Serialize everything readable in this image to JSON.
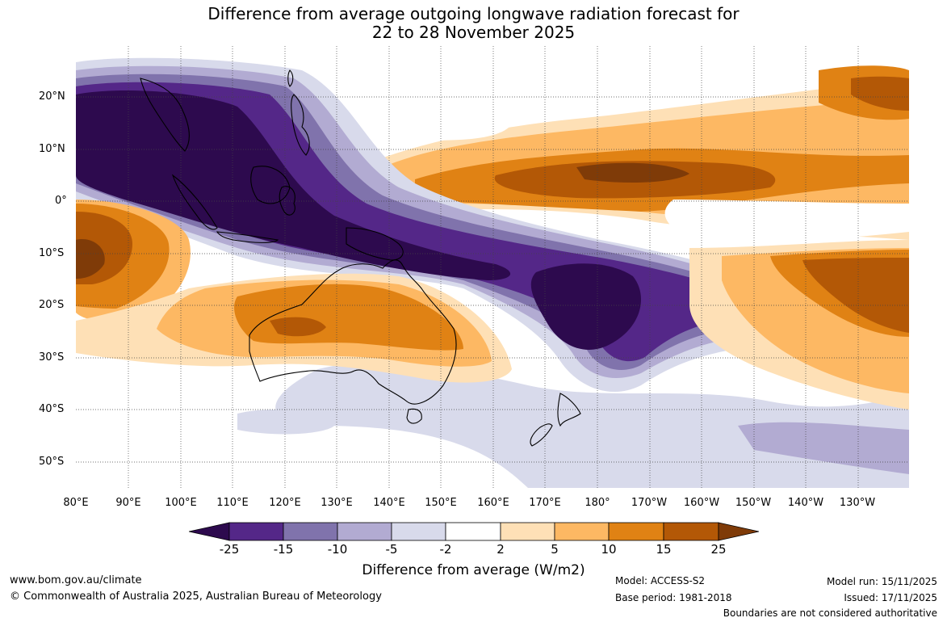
{
  "title": {
    "line1": "Difference from average outgoing longwave radiation forecast for",
    "line2": "22 to 28 November 2025"
  },
  "map": {
    "lat_labels": [
      "20°N",
      "10°N",
      "0°",
      "10°S",
      "20°S",
      "30°S",
      "40°S",
      "50°S"
    ],
    "lon_labels": [
      "80°E",
      "90°E",
      "100°E",
      "110°E",
      "120°E",
      "130°E",
      "140°E",
      "150°E",
      "160°E",
      "170°E",
      "180°",
      "170°W",
      "160°W",
      "150°W",
      "140°W",
      "130°W"
    ]
  },
  "legend": {
    "title": "Difference from average (W/m2)",
    "tick_labels": [
      "-25",
      "-15",
      "-10",
      "-5",
      "-2",
      "2",
      "5",
      "10",
      "15",
      "25"
    ],
    "colors": [
      "#2d0a4e",
      "#542788",
      "#8073ac",
      "#b2abd2",
      "#d8daeb",
      "#ffffff",
      "#fee0b6",
      "#fdb863",
      "#e08214",
      "#b35806",
      "#7f3b08"
    ]
  },
  "footer": {
    "website": "www.bom.gov.au/climate",
    "copyright": "© Commonwealth of Australia 2025, Australian Bureau of Meteorology",
    "model": "Model: ACCESS-S2",
    "base_period": "Base period: 1981-2018",
    "model_run": "Model run: 15/11/2025",
    "issued": "Issued: 17/11/2025",
    "disclaimer": "Boundaries are not considered authoritative"
  }
}
